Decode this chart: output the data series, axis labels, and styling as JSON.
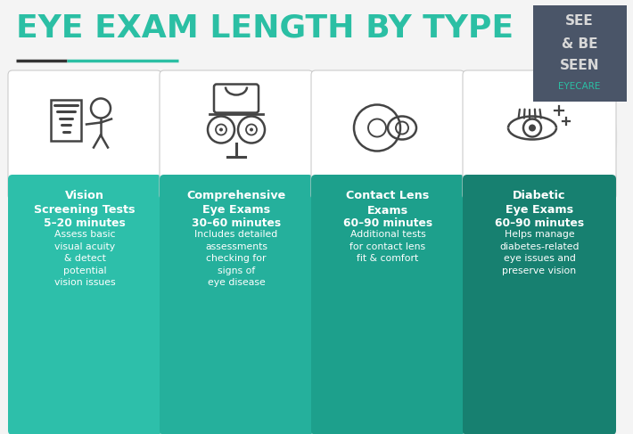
{
  "title": "EYE EXAM LENGTH BY TYPE",
  "bg_color": "#f4f4f4",
  "title_color": "#2bbfa4",
  "title_fontsize": 26,
  "underline_color1": "#333333",
  "underline_color2": "#2bbfa4",
  "logo_bg": "#4a5568",
  "logo_lines": [
    "SEE",
    "& BE",
    "SEEN"
  ],
  "logo_eyecare": "EYECARE",
  "logo_color": "#d8d8d8",
  "logo_eyecare_color": "#2bbfa4",
  "cards": [
    {
      "title": "Vision\nScreening Tests",
      "duration": "5–20 minutes",
      "description": "Assess basic\nvisual acuity\n& detect\npotential\nvision issues",
      "card_color": "#2dbfaa",
      "icon_type": "vision"
    },
    {
      "title": "Comprehensive\nEye Exams",
      "duration": "30–60 minutes",
      "description": "Includes detailed\nassessments\nchecking for\nsigns of\neye disease",
      "card_color": "#25b09c",
      "icon_type": "comprehensive"
    },
    {
      "title": "Contact Lens\nExams",
      "duration": "60–90 minutes",
      "description": "Additional tests\nfor contact lens\nfit & comfort",
      "card_color": "#1da08c",
      "icon_type": "contact"
    },
    {
      "title": "Diabetic\nEye Exams",
      "duration": "60–90 minutes",
      "description": "Helps manage\ndiabetes-related\neye issues and\npreserve vision",
      "card_color": "#178070",
      "icon_type": "diabetic"
    }
  ],
  "watermark_color": "#e2e2e2",
  "icon_color": "#444444",
  "white": "#ffffff",
  "dark_text": "#333333"
}
